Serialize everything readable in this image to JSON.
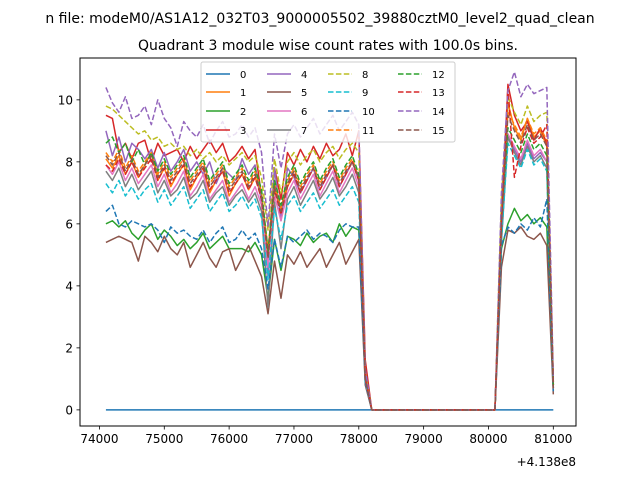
{
  "figure": {
    "suptitle": "n file: modeM0/AS1A12_032T03_9000005502_39880cztM0_level2_quad_clean",
    "offset_label": "+4.138e8"
  },
  "chart_data": {
    "type": "line",
    "title": "Quadrant 3 module wise count rates with 100.0s bins.",
    "xlabel": "",
    "ylabel": "",
    "xlim": [
      73700,
      81350
    ],
    "ylim": [
      -0.52,
      11.35
    ],
    "x_ticks": [
      74000,
      75000,
      76000,
      77000,
      78000,
      79000,
      80000,
      81000
    ],
    "x_tick_labels": [
      "74000",
      "75000",
      "76000",
      "77000",
      "78000",
      "79000",
      "80000",
      "81000"
    ],
    "y_ticks": [
      0,
      2,
      4,
      6,
      8,
      10
    ],
    "y_tick_labels": [
      "0",
      "2",
      "4",
      "6",
      "8",
      "10"
    ],
    "x_offset": 413800000,
    "grid": false,
    "legend_position": "upper center",
    "legend_columns": 4,
    "x": [
      74100,
      74200,
      74300,
      74400,
      74500,
      74600,
      74700,
      74800,
      74900,
      75000,
      75100,
      75200,
      75300,
      75400,
      75500,
      75600,
      75700,
      75800,
      75900,
      76000,
      76100,
      76200,
      76300,
      76400,
      76500,
      76600,
      76700,
      76800,
      76900,
      77000,
      77100,
      77200,
      77300,
      77400,
      77500,
      77600,
      77700,
      77800,
      77900,
      78000,
      78100,
      78200,
      78300,
      78400,
      78500,
      78600,
      78700,
      78800,
      78900,
      79000,
      79100,
      79200,
      79300,
      79400,
      79500,
      79600,
      79700,
      79800,
      79900,
      80000,
      80100,
      80200,
      80300,
      80400,
      80500,
      80600,
      80700,
      80800,
      80900,
      81000
    ],
    "series": [
      {
        "name": "0",
        "color": "#1f77b4",
        "dash": "solid",
        "values": [
          0,
          0,
          0,
          0,
          0,
          0,
          0,
          0,
          0,
          0,
          0,
          0,
          0,
          0,
          0,
          0,
          0,
          0,
          0,
          0,
          0,
          0,
          0,
          0,
          0,
          0,
          0,
          0,
          0,
          0,
          0,
          0,
          0,
          0,
          0,
          0,
          0,
          0,
          0,
          0,
          0,
          0,
          0,
          0,
          0,
          0,
          0,
          0,
          0,
          0,
          0,
          0,
          0,
          0,
          0,
          0,
          0,
          0,
          0,
          0,
          0,
          0,
          0,
          0,
          0,
          0,
          0,
          0,
          0,
          0
        ]
      },
      {
        "name": "1",
        "color": "#ff7f0e",
        "dash": "solid",
        "values": [
          8.1,
          7.8,
          8.2,
          7.6,
          8.0,
          7.5,
          7.9,
          8.3,
          7.4,
          7.8,
          7.2,
          7.6,
          7.9,
          7.1,
          7.5,
          7.8,
          7.0,
          7.4,
          7.7,
          6.9,
          7.3,
          7.6,
          7.1,
          7.5,
          6.9,
          5.2,
          7.1,
          6.4,
          7.2,
          7.6,
          7.0,
          7.4,
          7.8,
          7.1,
          7.5,
          7.9,
          7.2,
          7.6,
          8.0,
          7.4,
          1.0,
          0,
          0,
          0,
          0,
          0,
          0,
          0,
          0,
          0,
          0,
          0,
          0,
          0,
          0,
          0,
          0,
          0,
          0,
          0,
          0,
          5.8,
          9.9,
          9.1,
          8.7,
          9.4,
          8.8,
          9.0,
          8.5,
          0.8
        ]
      },
      {
        "name": "2",
        "color": "#2ca02c",
        "dash": "solid",
        "values": [
          6.0,
          6.1,
          5.9,
          6.1,
          5.7,
          5.5,
          5.8,
          6.0,
          5.5,
          5.8,
          5.6,
          5.3,
          5.5,
          5.2,
          5.4,
          5.7,
          5.2,
          5.4,
          5.6,
          5.2,
          5.2,
          5.2,
          5.1,
          5.4,
          5.0,
          3.6,
          5.5,
          4.5,
          5.6,
          5.5,
          5.3,
          5.7,
          5.4,
          5.6,
          5.7,
          5.4,
          6.0,
          5.6,
          5.9,
          5.8,
          1.0,
          0,
          0,
          0,
          0,
          0,
          0,
          0,
          0,
          0,
          0,
          0,
          0,
          0,
          0,
          0,
          0,
          0,
          0,
          0,
          0,
          5.2,
          6.0,
          6.5,
          6.1,
          6.3,
          6.0,
          6.2,
          5.9,
          0.7
        ]
      },
      {
        "name": "3",
        "color": "#d62728",
        "dash": "solid",
        "values": [
          9.5,
          9.4,
          8.3,
          8.6,
          8.1,
          8.6,
          8.7,
          8.0,
          8.6,
          8.2,
          8.3,
          8.4,
          8.0,
          8.5,
          8.1,
          8.4,
          8.7,
          8.3,
          8.6,
          8.0,
          8.2,
          8.5,
          8.1,
          8.4,
          6.9,
          4.8,
          7.8,
          6.8,
          8.3,
          7.9,
          8.4,
          8.0,
          8.5,
          8.1,
          8.6,
          8.2,
          8.4,
          8.9,
          8.2,
          9.0,
          1.6,
          0,
          0,
          0,
          0,
          0,
          0,
          0,
          0,
          0,
          0,
          0,
          0,
          0,
          0,
          0,
          0,
          0,
          0,
          0,
          0,
          6.0,
          10.5,
          9.5,
          9.0,
          9.3,
          8.7,
          9.1,
          8.6,
          0.9
        ]
      },
      {
        "name": "4",
        "color": "#9467bd",
        "dash": "solid",
        "values": [
          9.0,
          8.2,
          8.8,
          8.0,
          8.6,
          8.4,
          8.1,
          8.4,
          7.8,
          8.3,
          7.7,
          8.0,
          8.4,
          7.7,
          8.0,
          7.6,
          8.0,
          7.3,
          7.8,
          7.6,
          7.4,
          8.1,
          7.6,
          7.9,
          6.7,
          4.3,
          7.8,
          6.1,
          7.8,
          7.5,
          7.0,
          7.4,
          7.8,
          7.1,
          7.5,
          7.9,
          7.2,
          7.6,
          8.0,
          7.4,
          1.2,
          0,
          0,
          0,
          0,
          0,
          0,
          0,
          0,
          0,
          0,
          0,
          0,
          0,
          0,
          0,
          0,
          0,
          0,
          0,
          0,
          5.9,
          8.9,
          8.4,
          8.0,
          8.6,
          8.1,
          8.3,
          8.0,
          0.8
        ]
      },
      {
        "name": "5",
        "color": "#8c564b",
        "dash": "solid",
        "values": [
          5.4,
          5.5,
          5.6,
          5.5,
          5.4,
          4.8,
          5.6,
          5.4,
          5.1,
          5.6,
          5.2,
          5.0,
          5.4,
          4.6,
          5.0,
          5.4,
          4.9,
          4.6,
          5.1,
          5.2,
          4.5,
          4.9,
          5.3,
          4.8,
          4.3,
          3.1,
          4.8,
          3.6,
          5.0,
          4.7,
          5.1,
          4.6,
          4.9,
          5.2,
          4.6,
          5.0,
          5.4,
          4.7,
          5.1,
          5.5,
          0.8,
          0,
          0,
          0,
          0,
          0,
          0,
          0,
          0,
          0,
          0,
          0,
          0,
          0,
          0,
          0,
          0,
          0,
          0,
          0,
          0,
          4.6,
          5.8,
          5.7,
          5.9,
          5.6,
          5.5,
          5.7,
          5.3,
          0.5
        ]
      },
      {
        "name": "6",
        "color": "#e377c2",
        "dash": "solid",
        "values": [
          7.9,
          7.6,
          8.0,
          7.4,
          7.8,
          7.3,
          7.6,
          7.9,
          7.2,
          7.6,
          7.0,
          7.3,
          7.7,
          6.9,
          7.2,
          7.6,
          6.8,
          7.1,
          7.4,
          6.7,
          7.0,
          7.3,
          6.8,
          7.2,
          6.6,
          4.6,
          6.9,
          6.1,
          7.0,
          7.4,
          6.8,
          7.2,
          7.6,
          6.9,
          7.3,
          7.7,
          7.0,
          7.4,
          7.8,
          7.2,
          0.9,
          0,
          0,
          0,
          0,
          0,
          0,
          0,
          0,
          0,
          0,
          0,
          0,
          0,
          0,
          0,
          0,
          0,
          0,
          0,
          0,
          5.6,
          8.9,
          8.5,
          8.1,
          8.7,
          8.2,
          8.4,
          8.0,
          0.7
        ]
      },
      {
        "name": "7",
        "color": "#7f7f7f",
        "dash": "solid",
        "values": [
          7.7,
          7.4,
          7.8,
          7.2,
          7.6,
          7.1,
          7.4,
          7.7,
          7.0,
          7.4,
          6.9,
          7.1,
          7.5,
          6.8,
          7.0,
          7.4,
          6.7,
          7.0,
          7.2,
          6.6,
          6.9,
          7.1,
          6.7,
          7.0,
          6.4,
          3.3,
          6.7,
          5.2,
          6.8,
          7.2,
          6.6,
          7.0,
          7.4,
          6.8,
          7.1,
          7.5,
          6.9,
          7.2,
          7.6,
          7.0,
          0.9,
          0,
          0,
          0,
          0,
          0,
          0,
          0,
          0,
          0,
          0,
          0,
          0,
          0,
          0,
          0,
          0,
          0,
          0,
          0,
          0,
          5.4,
          8.8,
          8.3,
          7.9,
          8.5,
          8.0,
          8.2,
          7.8,
          0.7
        ]
      },
      {
        "name": "8",
        "color": "#bcbd22",
        "dash": "dashed",
        "values": [
          9.8,
          9.7,
          9.5,
          9.3,
          9.1,
          8.9,
          9.0,
          8.7,
          8.8,
          8.5,
          8.6,
          8.4,
          8.5,
          8.2,
          8.4,
          8.1,
          8.3,
          8.0,
          8.2,
          7.9,
          8.1,
          8.3,
          8.0,
          8.2,
          7.5,
          5.8,
          8.1,
          7.0,
          8.0,
          8.3,
          7.9,
          8.2,
          8.4,
          8.0,
          8.3,
          8.5,
          8.1,
          8.4,
          8.6,
          8.3,
          1.2,
          0,
          0,
          0,
          0,
          0,
          0,
          0,
          0,
          0,
          0,
          0,
          0,
          0,
          0,
          0,
          0,
          0,
          0,
          0,
          0,
          6.8,
          10.1,
          9.6,
          9.2,
          9.8,
          9.3,
          9.5,
          9.6,
          0.9
        ]
      },
      {
        "name": "9",
        "color": "#17becf",
        "dash": "dashed",
        "values": [
          7.3,
          7.0,
          7.4,
          6.9,
          7.2,
          6.8,
          7.1,
          7.3,
          6.7,
          7.1,
          6.6,
          6.9,
          7.2,
          6.5,
          6.8,
          7.1,
          6.4,
          6.7,
          7.0,
          6.4,
          6.6,
          6.9,
          6.5,
          6.8,
          6.2,
          4.2,
          6.5,
          5.5,
          6.6,
          6.9,
          6.4,
          6.7,
          7.0,
          6.5,
          6.8,
          7.1,
          6.6,
          6.9,
          7.2,
          6.7,
          0.9,
          0,
          0,
          0,
          0,
          0,
          0,
          0,
          0,
          0,
          0,
          0,
          0,
          0,
          0,
          0,
          0,
          0,
          0,
          0,
          0,
          5.5,
          8.6,
          8.2,
          7.8,
          8.4,
          7.9,
          8.1,
          7.7,
          0.7
        ]
      },
      {
        "name": "10",
        "color": "#1f77b4",
        "dash": "dashed",
        "values": [
          6.4,
          6.6,
          6.0,
          5.9,
          6.1,
          6.0,
          5.9,
          6.0,
          5.8,
          5.4,
          5.9,
          5.7,
          5.8,
          5.6,
          5.5,
          5.8,
          5.4,
          5.7,
          5.9,
          5.4,
          5.5,
          5.8,
          5.5,
          5.7,
          5.2,
          3.9,
          5.5,
          4.6,
          5.6,
          5.4,
          5.6,
          5.8,
          5.5,
          5.7,
          5.6,
          5.4,
          5.8,
          6.0,
          5.9,
          5.9,
          0.9,
          0,
          0,
          0,
          0,
          0,
          0,
          0,
          0,
          0,
          0,
          0,
          0,
          0,
          0,
          0,
          0,
          0,
          0,
          0,
          0,
          5.3,
          5.9,
          5.7,
          6.0,
          5.8,
          6.2,
          5.9,
          6.8,
          0.6
        ]
      },
      {
        "name": "11",
        "color": "#ff7f0e",
        "dash": "dashed",
        "values": [
          8.3,
          8.0,
          8.4,
          7.8,
          8.2,
          7.7,
          8.0,
          8.3,
          7.6,
          8.0,
          7.5,
          7.8,
          8.1,
          7.4,
          7.7,
          8.0,
          7.3,
          7.6,
          7.9,
          7.2,
          7.5,
          7.8,
          7.3,
          7.7,
          7.0,
          5.0,
          7.3,
          6.5,
          7.4,
          7.8,
          7.2,
          7.6,
          7.9,
          7.3,
          7.7,
          8.0,
          7.4,
          7.8,
          8.1,
          7.5,
          1.1,
          0,
          0,
          0,
          0,
          0,
          0,
          0,
          0,
          0,
          0,
          0,
          0,
          0,
          0,
          0,
          0,
          0,
          0,
          0,
          0,
          6.1,
          9.6,
          9.2,
          8.8,
          9.4,
          8.9,
          9.1,
          8.7,
          0.8
        ]
      },
      {
        "name": "12",
        "color": "#2ca02c",
        "dash": "dashed",
        "values": [
          8.6,
          8.8,
          8.3,
          8.6,
          8.0,
          8.4,
          7.9,
          8.3,
          7.7,
          8.1,
          7.6,
          7.9,
          8.2,
          7.5,
          7.8,
          8.1,
          7.4,
          7.7,
          8.0,
          7.3,
          7.6,
          7.9,
          7.4,
          7.8,
          7.1,
          5.1,
          7.4,
          6.6,
          7.5,
          7.9,
          7.3,
          7.7,
          8.0,
          7.4,
          7.8,
          8.1,
          7.5,
          7.9,
          8.2,
          7.6,
          1.1,
          0,
          0,
          0,
          0,
          0,
          0,
          0,
          0,
          0,
          0,
          0,
          0,
          0,
          0,
          0,
          0,
          0,
          0,
          0,
          0,
          6.2,
          9.1,
          8.7,
          8.3,
          8.9,
          8.4,
          8.6,
          8.2,
          0.8
        ]
      },
      {
        "name": "13",
        "color": "#d62728",
        "dash": "dashed",
        "values": [
          7.9,
          7.7,
          8.1,
          7.6,
          8.0,
          7.5,
          7.8,
          8.1,
          7.4,
          7.8,
          7.3,
          7.6,
          7.9,
          7.2,
          7.5,
          7.8,
          7.1,
          7.4,
          7.7,
          7.0,
          7.3,
          7.6,
          7.1,
          7.5,
          6.8,
          4.9,
          7.1,
          6.3,
          7.2,
          7.6,
          7.0,
          7.4,
          7.8,
          7.1,
          7.5,
          7.9,
          7.2,
          7.6,
          8.0,
          7.4,
          1.0,
          0,
          0,
          0,
          0,
          0,
          0,
          0,
          0,
          0,
          0,
          0,
          0,
          0,
          0,
          0,
          0,
          0,
          0,
          0,
          0,
          6.0,
          10.4,
          7.5,
          8.5,
          9.1,
          8.6,
          8.8,
          9.2,
          0.8
        ]
      },
      {
        "name": "14",
        "color": "#9467bd",
        "dash": "dashed",
        "values": [
          10.4,
          9.9,
          9.6,
          10.1,
          9.4,
          9.5,
          9.8,
          9.2,
          10.0,
          9.4,
          9.1,
          8.5,
          9.3,
          9.0,
          8.8,
          9.2,
          8.6,
          9.0,
          9.3,
          8.8,
          8.9,
          9.2,
          8.8,
          9.1,
          8.3,
          5.9,
          8.9,
          7.8,
          8.9,
          9.2,
          8.8,
          9.1,
          9.4,
          8.9,
          9.2,
          9.5,
          9.0,
          9.3,
          9.6,
          9.2,
          1.3,
          0,
          0,
          0,
          0,
          0,
          0,
          0,
          0,
          0,
          0,
          0,
          0,
          0,
          0,
          0,
          0,
          0,
          0,
          0,
          0,
          7.0,
          10.3,
          10.9,
          10.1,
          10.5,
          10.2,
          10.3,
          10.4,
          1.0
        ]
      },
      {
        "name": "15",
        "color": "#8c564b",
        "dash": "dashed",
        "values": [
          8.2,
          7.9,
          8.3,
          7.7,
          8.1,
          7.6,
          7.9,
          8.2,
          7.5,
          7.9,
          7.4,
          7.7,
          8.0,
          7.3,
          7.6,
          7.9,
          7.2,
          7.5,
          7.8,
          7.1,
          7.4,
          7.7,
          7.2,
          7.6,
          6.9,
          4.9,
          7.2,
          6.4,
          7.3,
          7.7,
          7.1,
          7.5,
          7.8,
          7.2,
          7.6,
          7.9,
          7.3,
          7.7,
          8.0,
          7.5,
          1.0,
          0,
          0,
          0,
          0,
          0,
          0,
          0,
          0,
          0,
          0,
          0,
          0,
          0,
          0,
          0,
          0,
          0,
          0,
          0,
          0,
          6.0,
          9.5,
          9.0,
          8.6,
          9.2,
          8.7,
          8.9,
          8.5,
          0.7
        ]
      }
    ]
  }
}
